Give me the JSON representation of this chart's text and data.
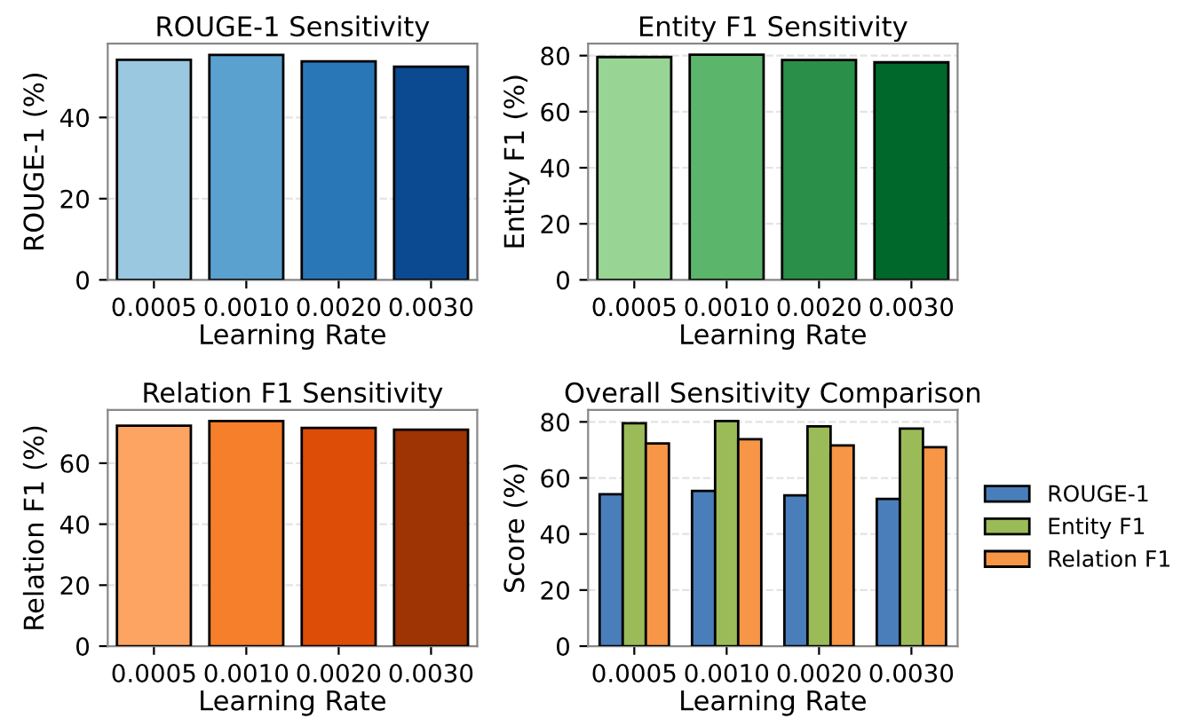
{
  "chart_data": [
    {
      "type": "bar",
      "title": "ROUGE-1 Sensitivity",
      "xlabel": "Learning Rate",
      "ylabel": "ROUGE-1 (%)",
      "categories": [
        "0.0005",
        "0.0010",
        "0.0020",
        "0.0030"
      ],
      "values": [
        54.2,
        55.4,
        53.8,
        52.5
      ],
      "colors": [
        "#9ac8e0",
        "#5aa1d0",
        "#2a77b8",
        "#0b4a90"
      ],
      "ylim": [
        0,
        58.2
      ],
      "yticks": [
        0,
        20,
        40
      ],
      "grid": "y"
    },
    {
      "type": "bar",
      "title": "Entity F1 Sensitivity",
      "xlabel": "Learning Rate",
      "ylabel": "Entity F1 (%)",
      "categories": [
        "0.0005",
        "0.0010",
        "0.0020",
        "0.0030"
      ],
      "values": [
        79.5,
        80.3,
        78.4,
        77.6
      ],
      "colors": [
        "#98d594",
        "#5bb56a",
        "#2a8f48",
        "#00682a"
      ],
      "ylim": [
        0,
        84.3
      ],
      "yticks": [
        0,
        20,
        40,
        60,
        80
      ],
      "grid": "y"
    },
    {
      "type": "bar",
      "title": "Relation F1 Sensitivity",
      "xlabel": "Learning Rate",
      "ylabel": "Relation F1 (%)",
      "categories": [
        "0.0005",
        "0.0010",
        "0.0020",
        "0.0030"
      ],
      "values": [
        72.3,
        73.8,
        71.6,
        71.0
      ],
      "colors": [
        "#fda463",
        "#f57f2a",
        "#dd4d07",
        "#9e3303"
      ],
      "ylim": [
        0,
        77.5
      ],
      "yticks": [
        0,
        20,
        40,
        60
      ],
      "grid": "y"
    },
    {
      "type": "bar",
      "title": "Overall Sensitivity Comparison",
      "xlabel": "Learning Rate",
      "ylabel": "Score (%)",
      "categories": [
        "0.0005",
        "0.0010",
        "0.0020",
        "0.0030"
      ],
      "series": [
        {
          "name": "ROUGE-1",
          "color": "#4a7ebb",
          "values": [
            54.2,
            55.4,
            53.8,
            52.5
          ]
        },
        {
          "name": "Entity F1",
          "color": "#9bbb59",
          "values": [
            79.5,
            80.3,
            78.4,
            77.6
          ]
        },
        {
          "name": "Relation F1",
          "color": "#f79646",
          "values": [
            72.3,
            73.8,
            71.6,
            71.0
          ]
        }
      ],
      "ylim": [
        0,
        84.3
      ],
      "yticks": [
        0,
        20,
        40,
        60,
        80
      ],
      "grid": "y",
      "legend": "right"
    }
  ]
}
